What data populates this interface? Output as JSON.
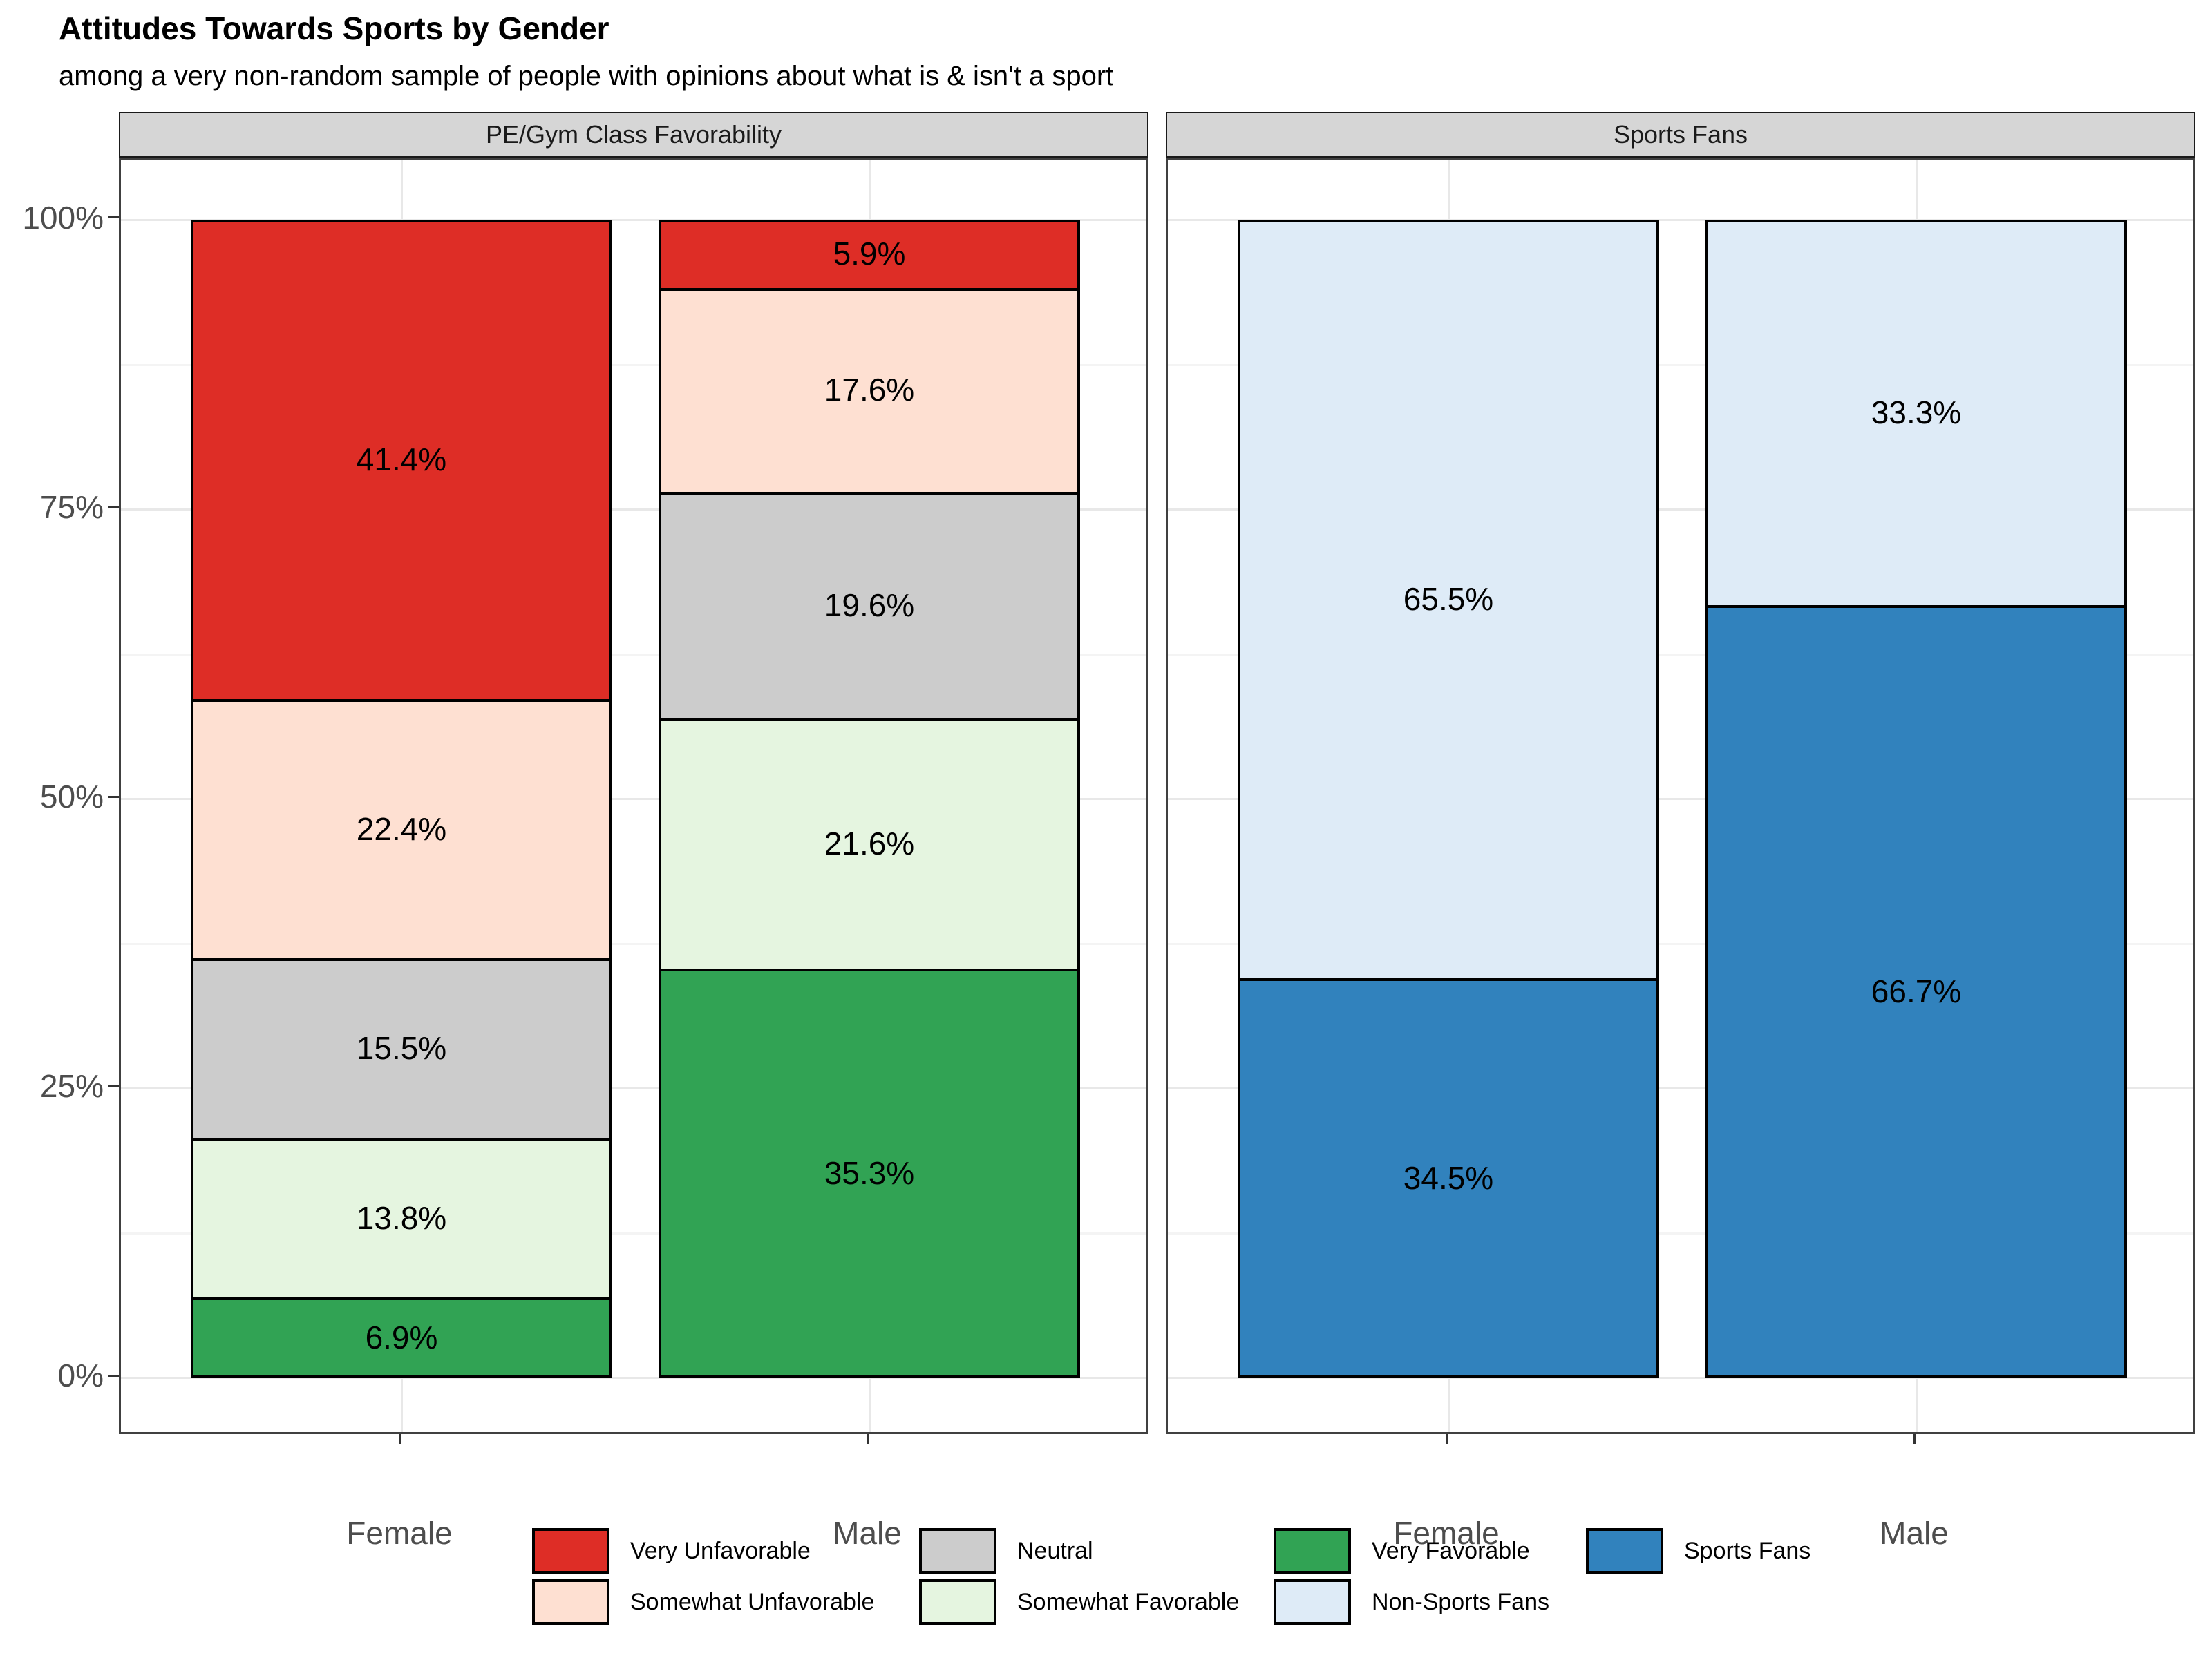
{
  "title": "Attitudes Towards Sports by Gender",
  "subtitle": "among a very non-random sample of people with opinions about what is & isn't a sport",
  "chart_data": {
    "type": "bar",
    "variant": "stacked-percent",
    "ylim": [
      0,
      100
    ],
    "grid": "on",
    "legend_position": "bottom",
    "y_ticks": [
      {
        "label": "0%",
        "value": 0
      },
      {
        "label": "25%",
        "value": 25
      },
      {
        "label": "50%",
        "value": 50
      },
      {
        "label": "75%",
        "value": 75
      },
      {
        "label": "100%",
        "value": 100
      }
    ],
    "y_minor_ticks": [
      12.5,
      37.5,
      62.5,
      87.5
    ],
    "facets": [
      {
        "label": "PE/Gym Class Favorability",
        "categories": [
          "Female",
          "Male"
        ],
        "series": [
          {
            "name": "Very Unfavorable",
            "color": "#de2d26",
            "values": [
              41.4,
              5.9
            ],
            "labels": [
              "41.4%",
              "5.9%"
            ]
          },
          {
            "name": "Somewhat Unfavorable",
            "color": "#fee0d2",
            "values": [
              22.4,
              17.6
            ],
            "labels": [
              "22.4%",
              "17.6%"
            ]
          },
          {
            "name": "Neutral",
            "color": "#cccccc",
            "values": [
              15.5,
              19.6
            ],
            "labels": [
              "15.5%",
              "19.6%"
            ]
          },
          {
            "name": "Somewhat Favorable",
            "color": "#e5f5e0",
            "values": [
              13.8,
              21.6
            ],
            "labels": [
              "13.8%",
              "21.6%"
            ]
          },
          {
            "name": "Very Favorable",
            "color": "#31a354",
            "values": [
              6.9,
              35.3
            ],
            "labels": [
              "6.9%",
              "35.3%"
            ]
          }
        ],
        "stack_bottom_to_top": [
          "Very Favorable",
          "Somewhat Favorable",
          "Neutral",
          "Somewhat Unfavorable",
          "Very Unfavorable"
        ]
      },
      {
        "label": "Sports Fans",
        "categories": [
          "Female",
          "Male"
        ],
        "series": [
          {
            "name": "Sports Fans",
            "color": "#3182bd",
            "values": [
              34.5,
              66.7
            ],
            "labels": [
              "34.5%",
              "66.7%"
            ]
          },
          {
            "name": "Non-Sports Fans",
            "color": "#deebf7",
            "values": [
              65.5,
              33.3
            ],
            "labels": [
              "65.5%",
              "33.3%"
            ]
          }
        ],
        "stack_bottom_to_top": [
          "Sports Fans",
          "Non-Sports Fans"
        ]
      }
    ]
  },
  "legend": {
    "columns": [
      [
        {
          "label": "Very Unfavorable",
          "color": "#de2d26"
        },
        {
          "label": "Somewhat Unfavorable",
          "color": "#fee0d2"
        }
      ],
      [
        {
          "label": "Neutral",
          "color": "#cccccc"
        },
        {
          "label": "Somewhat Favorable",
          "color": "#e5f5e0"
        }
      ],
      [
        {
          "label": "Very Favorable",
          "color": "#31a354"
        },
        {
          "label": "Non-Sports Fans",
          "color": "#deebf7"
        }
      ],
      [
        {
          "label": "Sports Fans",
          "color": "#3182bd"
        }
      ]
    ]
  }
}
